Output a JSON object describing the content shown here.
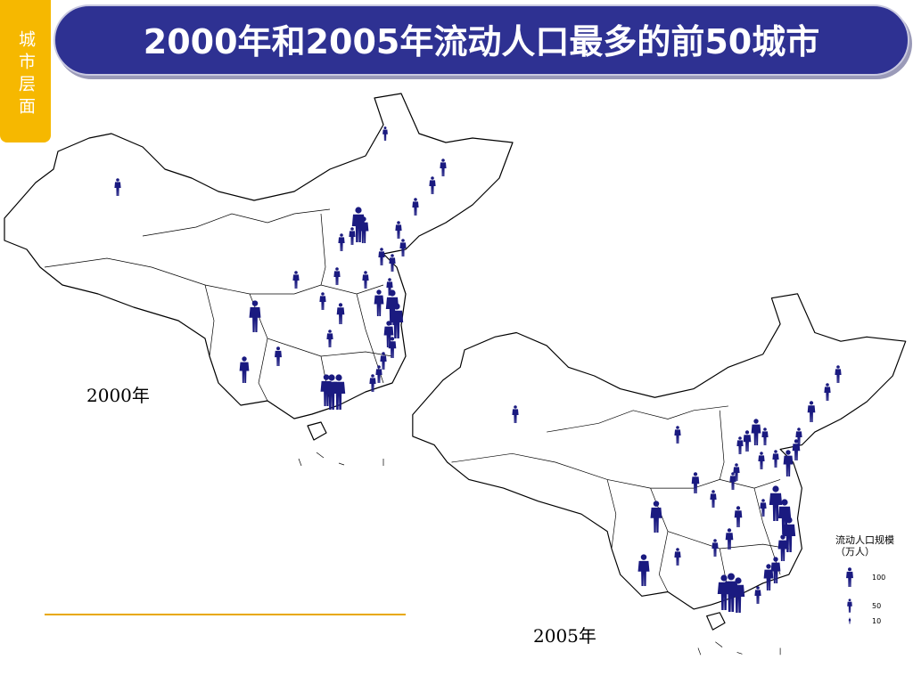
{
  "header": {
    "tab": "城市层面",
    "title": "2000年和2005年流动人口最多的前50城市"
  },
  "maps": [
    {
      "label": "2000年"
    },
    {
      "label": "2005年"
    }
  ],
  "legend": {
    "title": "流动人口规模（万人）",
    "items": [
      100,
      50,
      10
    ]
  }
}
